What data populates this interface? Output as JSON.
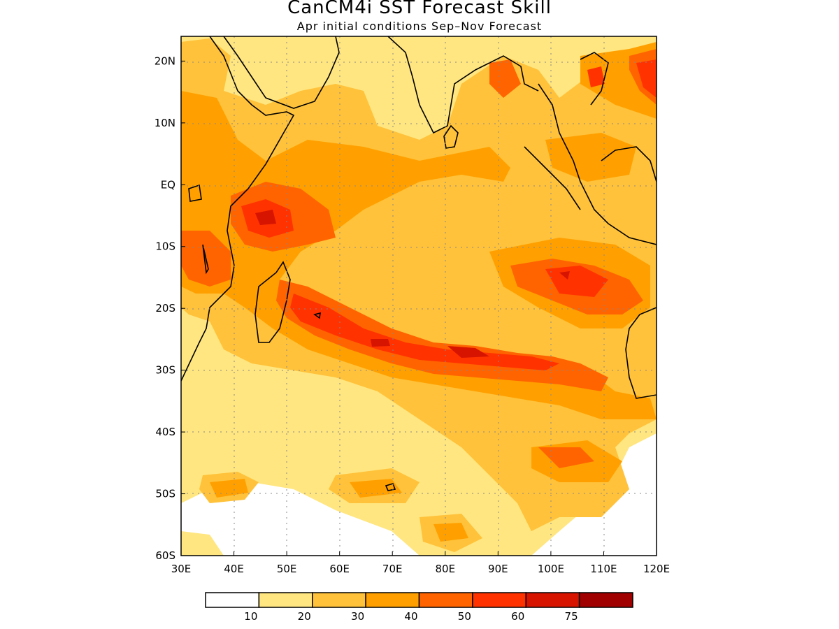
{
  "title": "CanCM4i SST Forecast Skill",
  "subtitle": "Apr initial conditions   Sep–Nov Forecast",
  "map": {
    "lon_range": [
      30,
      120
    ],
    "lat_range": [
      -60,
      24
    ],
    "lon_ticks": [
      "30E",
      "40E",
      "50E",
      "60E",
      "70E",
      "80E",
      "90E",
      "100E",
      "110E",
      "120E"
    ],
    "lat_ticks": [
      "20N",
      "10N",
      "EQ",
      "10S",
      "20S",
      "30S",
      "40S",
      "50S",
      "60S"
    ],
    "grid": true
  },
  "colorbar": {
    "colors": [
      "#ffffff",
      "#ffe680",
      "#ffc23a",
      "#ffa000",
      "#ff6400",
      "#ff3200",
      "#d61400",
      "#a00000"
    ],
    "labels": [
      "10",
      "20",
      "30",
      "40",
      "50",
      "60",
      "75"
    ]
  }
}
